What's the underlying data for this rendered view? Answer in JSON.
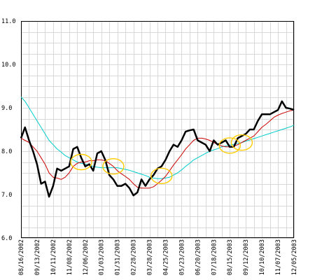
{
  "chart_data": {
    "type": "line",
    "title": "",
    "xlabel": "",
    "ylabel": "",
    "ylim": [
      6.0,
      11.0
    ],
    "yticks": [
      "6.0",
      "7.0",
      "8.0",
      "9.0",
      "10.0",
      "11.0"
    ],
    "xticks": [
      "08/16/2002",
      "09/13/2002",
      "10/11/2002",
      "11/08/2002",
      "12/06/2002",
      "01/03/2003",
      "01/31/2003",
      "02/28/2003",
      "03/28/2003",
      "04/25/2003",
      "05/23/2003",
      "06/20/2003",
      "07/18/2003",
      "08/15/2003",
      "09/12/2003",
      "10/10/2003",
      "11/07/2003",
      "12/05/2003"
    ],
    "grid": true,
    "x": [
      "08/16/2002",
      "08/23/2002",
      "08/30/2002",
      "09/06/2002",
      "09/13/2002",
      "09/20/2002",
      "09/27/2002",
      "10/04/2002",
      "10/11/2002",
      "10/18/2002",
      "10/25/2002",
      "11/01/2002",
      "11/08/2002",
      "11/15/2002",
      "11/22/2002",
      "11/29/2002",
      "12/06/2002",
      "12/13/2002",
      "12/20/2002",
      "12/27/2002",
      "01/03/2003",
      "01/10/2003",
      "01/17/2003",
      "01/24/2003",
      "01/31/2003",
      "02/07/2003",
      "02/14/2003",
      "02/21/2003",
      "02/28/2003",
      "03/07/2003",
      "03/14/2003",
      "03/21/2003",
      "03/28/2003",
      "04/04/2003",
      "04/11/2003",
      "04/18/2003",
      "04/25/2003",
      "05/02/2003",
      "05/09/2003",
      "05/16/2003",
      "05/23/2003",
      "05/30/2003",
      "06/06/2003",
      "06/13/2003",
      "06/20/2003",
      "06/27/2003",
      "07/04/2003",
      "07/11/2003",
      "07/18/2003",
      "07/25/2003",
      "08/01/2003",
      "08/08/2003",
      "08/15/2003",
      "08/22/2003",
      "08/29/2003",
      "09/05/2003",
      "09/12/2003",
      "09/19/2003",
      "09/26/2003",
      "10/03/2003",
      "10/10/2003",
      "10/17/2003",
      "10/24/2003",
      "10/31/2003",
      "11/07/2003",
      "11/14/2003",
      "11/21/2003",
      "11/28/2003",
      "12/05/2003"
    ],
    "series": [
      {
        "color": "#000000",
        "values": [
          8.3,
          8.55,
          8.25,
          8.0,
          7.7,
          7.25,
          7.3,
          6.95,
          7.2,
          7.6,
          7.55,
          7.6,
          7.65,
          8.05,
          8.1,
          7.85,
          7.65,
          7.7,
          7.55,
          7.95,
          8.0,
          7.8,
          7.45,
          7.35,
          7.2,
          7.2,
          7.25,
          7.15,
          6.98,
          7.05,
          7.35,
          7.2,
          7.35,
          7.45,
          7.6,
          7.65,
          7.8,
          8.0,
          8.15,
          8.1,
          8.25,
          8.45,
          8.48,
          8.5,
          8.25,
          8.2,
          8.15,
          8.0,
          8.25,
          8.15,
          8.2,
          8.25,
          8.1,
          8.1,
          8.3,
          8.35,
          8.4,
          8.5,
          8.5,
          8.7,
          8.85,
          8.85,
          8.85,
          8.9,
          8.95,
          9.15,
          9.0,
          8.98,
          8.95
        ]
      },
      {
        "color": "#cc0000",
        "values": [
          8.3,
          8.25,
          8.2,
          8.1,
          8.0,
          7.85,
          7.7,
          7.5,
          7.4,
          7.38,
          7.35,
          7.4,
          7.5,
          7.65,
          7.72,
          7.75,
          7.75,
          7.78,
          7.78,
          7.8,
          7.8,
          7.78,
          7.72,
          7.65,
          7.55,
          7.48,
          7.42,
          7.35,
          7.25,
          7.17,
          7.15,
          7.15,
          7.15,
          7.18,
          7.25,
          7.33,
          7.42,
          7.55,
          7.68,
          7.8,
          7.92,
          8.05,
          8.15,
          8.25,
          8.3,
          8.3,
          8.28,
          8.25,
          8.2,
          8.15,
          8.12,
          8.1,
          8.1,
          8.12,
          8.15,
          8.2,
          8.25,
          8.3,
          8.35,
          8.45,
          8.55,
          8.62,
          8.7,
          8.78,
          8.83,
          8.87,
          8.9,
          8.93,
          8.95
        ]
      },
      {
        "color": "#00cccc",
        "values": [
          9.25,
          9.15,
          9.0,
          8.85,
          8.7,
          8.55,
          8.4,
          8.25,
          8.15,
          8.05,
          7.98,
          7.9,
          7.85,
          7.8,
          7.75,
          7.72,
          7.7,
          7.68,
          7.65,
          7.63,
          7.62,
          7.62,
          7.62,
          7.62,
          7.62,
          7.6,
          7.58,
          7.56,
          7.53,
          7.5,
          7.47,
          7.44,
          7.4,
          7.38,
          7.37,
          7.37,
          7.38,
          7.4,
          7.45,
          7.5,
          7.57,
          7.65,
          7.72,
          7.8,
          7.85,
          7.9,
          7.95,
          8.0,
          8.03,
          8.06,
          8.1,
          8.12,
          8.14,
          8.16,
          8.18,
          8.2,
          8.23,
          8.26,
          8.29,
          8.32,
          8.35,
          8.38,
          8.41,
          8.44,
          8.47,
          8.5,
          8.53,
          8.56,
          8.6
        ]
      }
    ],
    "annotations": {
      "type": "circle",
      "color": "#ffcc00",
      "points": [
        {
          "x": "11/29/2002",
          "y": 7.75
        },
        {
          "x": "01/24/2003",
          "y": 7.65
        },
        {
          "x": "04/18/2003",
          "y": 7.43
        },
        {
          "x": "08/15/2003",
          "y": 8.13
        },
        {
          "x": "09/05/2003",
          "y": 8.2
        }
      ]
    }
  }
}
